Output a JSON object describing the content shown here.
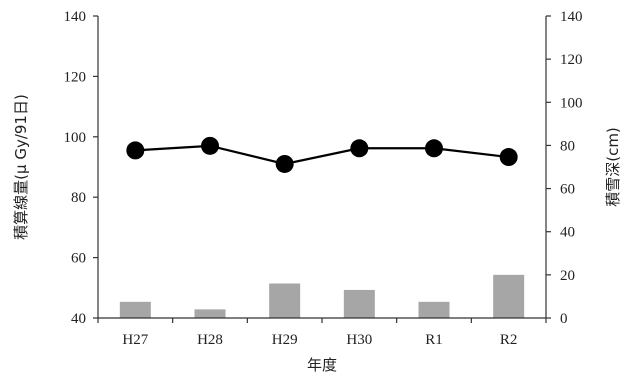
{
  "chart_data": {
    "type": "bar+line",
    "xlabel": "年度",
    "ylabel_left": "積算線量(μ Gy/91日)",
    "ylabel_right": "積雪深(cm)",
    "categories": [
      "H27",
      "H28",
      "H29",
      "H30",
      "R1",
      "R2"
    ],
    "left_axis": {
      "ylim": [
        40,
        140
      ],
      "ticks": [
        "40",
        "60",
        "80",
        "100",
        "120",
        "140"
      ]
    },
    "right_axis": {
      "ylim": [
        0,
        140
      ],
      "ticks": [
        "0",
        "20",
        "40",
        "60",
        "80",
        "100",
        "120",
        "140"
      ]
    },
    "series": [
      {
        "type": "line",
        "axis": "left",
        "values": [
          95.5,
          97,
          91,
          96.2,
          96.2,
          93.3
        ]
      },
      {
        "type": "bar",
        "axis": "right",
        "values": [
          7.5,
          4,
          16,
          13,
          7.5,
          20
        ]
      }
    ],
    "colors": {
      "line": "#000000",
      "bar": "#a6a6a6",
      "axis": "#333333"
    }
  }
}
